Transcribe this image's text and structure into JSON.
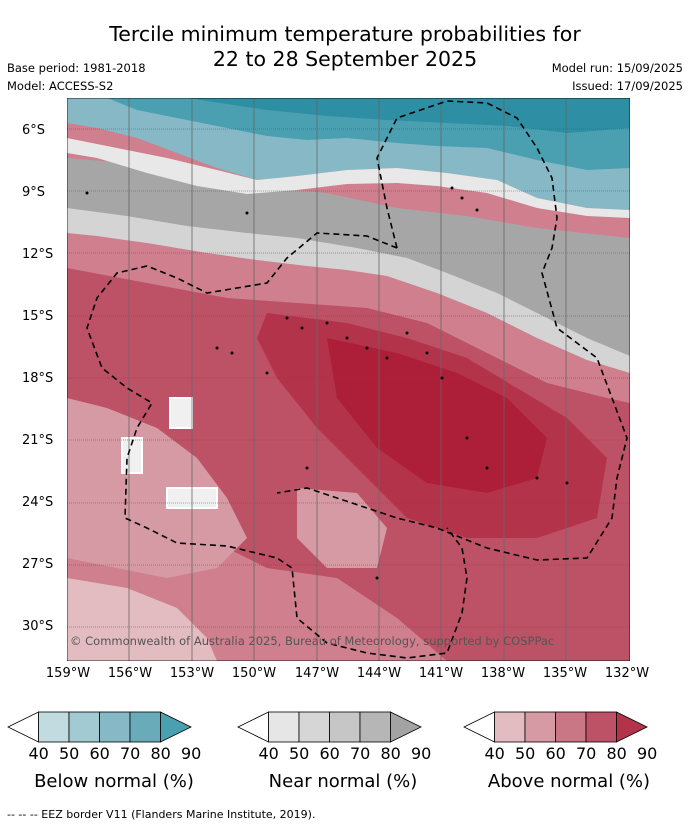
{
  "title_line1": "Tercile minimum temperature probabilities for",
  "title_line2": "22 to 28 September 2025",
  "meta": {
    "base_period": "Base period: 1981-2018",
    "model": "Model: ACCESS-S2",
    "model_run": "Model run: 15/09/2025",
    "issued": "Issued: 17/09/2025"
  },
  "latitudes": [
    "6°S",
    "9°S",
    "12°S",
    "15°S",
    "18°S",
    "21°S",
    "24°S",
    "27°S",
    "30°S"
  ],
  "longitudes": [
    "159°W",
    "156°W",
    "153°W",
    "150°W",
    "147°W",
    "144°W",
    "141°W",
    "138°W",
    "135°W",
    "132°W"
  ],
  "copyright": "© Commonwealth of Australia 2025, Bureau of Meteorology, supported by COSPPac",
  "colorbars": [
    {
      "name": "Below normal (%)",
      "ticks": [
        "40",
        "50",
        "60",
        "70",
        "80",
        "90"
      ],
      "colors": [
        "#ffffff",
        "#c2dbe1",
        "#a2cad3",
        "#86b8c5",
        "#6aabb9",
        "#4aa0b1"
      ]
    },
    {
      "name": "Near normal (%)",
      "ticks": [
        "40",
        "50",
        "60",
        "70",
        "80",
        "90"
      ],
      "colors": [
        "#ffffff",
        "#e6e6e6",
        "#d6d6d6",
        "#c6c6c6",
        "#b6b6b6",
        "#a3a3a3"
      ]
    },
    {
      "name": "Above normal (%)",
      "ticks": [
        "40",
        "50",
        "60",
        "70",
        "80",
        "90"
      ],
      "colors": [
        "#ffffff",
        "#e3bcc2",
        "#d69aa4",
        "#c97685",
        "#bd5266",
        "#b3344a"
      ]
    }
  ],
  "footer": "--  --  -- EEZ border V11 (Flanders Marine Institute, 2019)."
}
